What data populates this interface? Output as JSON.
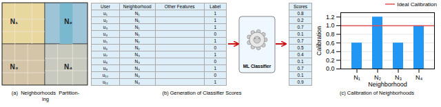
{
  "chart_data": [
    {
      "type": "map",
      "subtitle": "(a)  Neighborhoods  Partition-\ning",
      "categories": [
        "N₁",
        "N₂",
        "N₃",
        "N₄"
      ],
      "colors": [
        "#e8d8a0",
        "#9ec4d8",
        "#d4c4a8",
        "#c8cac0"
      ]
    },
    {
      "type": "table",
      "subtitle": "(b) Generation of Classifier Scores",
      "columns": [
        "User",
        "Neighborhood",
        "Other Features",
        "Label"
      ],
      "users": [
        "u₁",
        "u₂",
        "u₃",
        "u₄",
        "u₅",
        "u₆",
        "u₇",
        "u₈",
        "u₉",
        "u₁₀",
        "u₁₁"
      ],
      "neighborhoods": [
        "N₁",
        "N₁",
        "N₁",
        "N₁",
        "N₂",
        "N₂",
        "N₃",
        "N₃",
        "N₃",
        "N₄",
        "N₄"
      ],
      "labels": [
        1,
        1,
        1,
        0,
        1,
        0,
        1,
        0,
        1,
        0,
        1
      ],
      "annotation": "ML Classifier",
      "color": "#cc1111",
      "scores_header": "Scores",
      "scores": [
        0.8,
        0.2,
        0.7,
        0.1,
        0.7,
        0.5,
        0.4,
        0.1,
        0.7,
        0.1,
        0.9
      ]
    },
    {
      "type": "bar",
      "subtitle": "(c) Calibration of Neighborhoods",
      "categories": [
        "N₁",
        "N₂",
        "N₃",
        "N₄"
      ],
      "values": [
        0.6,
        1.2,
        0.6,
        1.0
      ],
      "color": "#2196f3",
      "xlabel": "Neighborhood",
      "ylabel": "Calibration",
      "ylim": [
        0,
        1.3
      ],
      "yticks": [
        {
          "value": 0.0,
          "label": "0.0"
        },
        0.2,
        0.4,
        0.6,
        0.8,
        {
          "value": 1.0,
          "label": "1.0"
        },
        1.2
      ],
      "reference_line": {
        "name": "Ideal Calibration",
        "value": 1.0,
        "color": "#e05050"
      },
      "legend": "upper right",
      "grid": true
    }
  ]
}
